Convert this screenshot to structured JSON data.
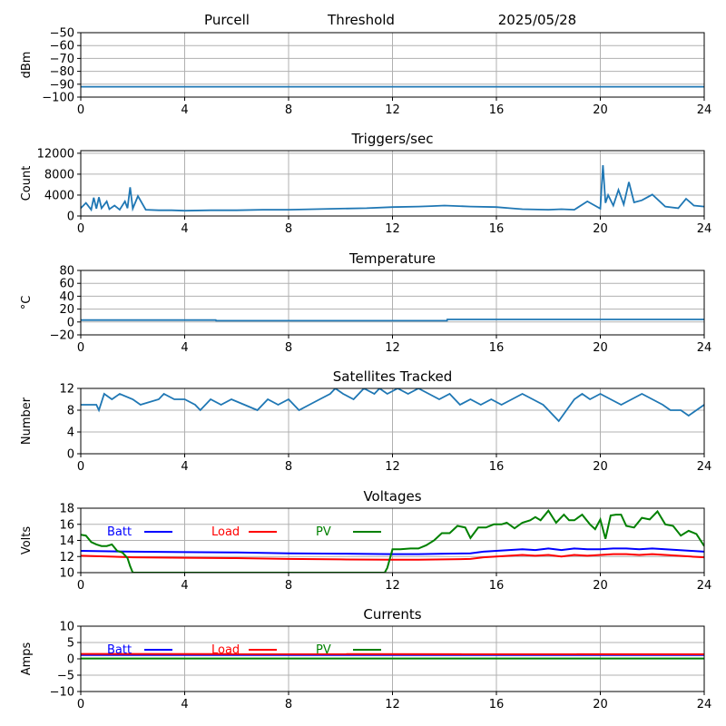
{
  "header": {
    "site": "Purcell",
    "mode": "Threshold",
    "date": "2025/05/28"
  },
  "colors": {
    "series": "#1f77b4",
    "batt": "#0000ff",
    "load": "#ff0000",
    "pv": "#008000",
    "grid": "#b0b0b0"
  },
  "chart_data": [
    {
      "type": "line",
      "title": "",
      "ylabel": "dBm",
      "xlim": [
        0,
        24
      ],
      "xticks": [
        0,
        4,
        8,
        12,
        16,
        20,
        24
      ],
      "ylim": [
        -100,
        -50
      ],
      "yticks": [
        -100,
        -90,
        -80,
        -70,
        -60,
        -50
      ],
      "grid": true,
      "series": [
        {
          "values_x": [
            0,
            2,
            4,
            6,
            8,
            10,
            12,
            14,
            16,
            18,
            20,
            22,
            24
          ],
          "values": [
            -92,
            -92,
            -92,
            -92,
            -92,
            -92,
            -92,
            -92,
            -92,
            -92,
            -92,
            -92,
            -92
          ]
        }
      ]
    },
    {
      "type": "line",
      "title": "Triggers/sec",
      "ylabel": "Count",
      "xlim": [
        0,
        24
      ],
      "xticks": [
        0,
        4,
        8,
        12,
        16,
        20,
        24
      ],
      "ylim": [
        0,
        12500
      ],
      "yticks": [
        0,
        4000,
        8000,
        12000
      ],
      "grid": true,
      "series": [
        {
          "values_x": [
            0,
            0.2,
            0.4,
            0.5,
            0.6,
            0.7,
            0.8,
            1.0,
            1.1,
            1.3,
            1.5,
            1.7,
            1.8,
            1.9,
            2.0,
            2.2,
            2.5,
            3.0,
            3.5,
            4.0,
            5.0,
            6.0,
            7.0,
            8.0,
            9.0,
            10.0,
            11.0,
            12.0,
            13.0,
            13.5,
            14.0,
            15.0,
            16.0,
            16.5,
            17.0,
            18.0,
            18.5,
            19.0,
            19.5,
            20.0,
            20.1,
            20.2,
            20.3,
            20.5,
            20.7,
            20.9,
            21.1,
            21.3,
            21.6,
            22.0,
            22.5,
            23.0,
            23.3,
            23.6,
            24.0
          ],
          "values": [
            1500,
            2500,
            1200,
            3500,
            1400,
            3600,
            1500,
            2800,
            1300,
            2000,
            1200,
            2800,
            1500,
            5500,
            1400,
            3800,
            1200,
            1100,
            1100,
            1000,
            1100,
            1100,
            1200,
            1200,
            1300,
            1400,
            1500,
            1700,
            1800,
            1900,
            2000,
            1800,
            1700,
            1500,
            1300,
            1200,
            1300,
            1200,
            2800,
            1400,
            9700,
            2500,
            4000,
            2000,
            5000,
            2200,
            6500,
            2600,
            3000,
            4100,
            1800,
            1500,
            3300,
            2000,
            1800
          ]
        }
      ]
    },
    {
      "type": "line",
      "title": "Temperature",
      "ylabel": "°C",
      "xlim": [
        0,
        24
      ],
      "xticks": [
        0,
        4,
        8,
        12,
        16,
        20,
        24
      ],
      "ylim": [
        -20,
        80
      ],
      "yticks": [
        -20,
        0,
        20,
        40,
        60,
        80
      ],
      "grid": true,
      "series": [
        {
          "values_x": [
            0,
            5.2,
            5.21,
            14.1,
            14.11,
            24
          ],
          "values": [
            3,
            3,
            2,
            2,
            4,
            4
          ]
        }
      ]
    },
    {
      "type": "line",
      "title": "Satellites Tracked",
      "ylabel": "Number",
      "xlim": [
        0,
        24
      ],
      "xticks": [
        0,
        4,
        8,
        12,
        16,
        20,
        24
      ],
      "ylim": [
        0,
        12
      ],
      "yticks": [
        0,
        4,
        8,
        12
      ],
      "grid": true,
      "series": [
        {
          "values_x": [
            0,
            0.6,
            0.7,
            0.9,
            1.2,
            1.5,
            2.0,
            2.3,
            3.0,
            3.2,
            3.6,
            4.0,
            4.4,
            4.6,
            5.0,
            5.4,
            5.8,
            6.3,
            6.8,
            7.2,
            7.6,
            8.0,
            8.4,
            8.8,
            9.2,
            9.6,
            9.8,
            10.1,
            10.5,
            10.9,
            11.3,
            11.5,
            11.8,
            12.2,
            12.6,
            13.0,
            13.4,
            13.8,
            14.2,
            14.6,
            15.0,
            15.4,
            15.8,
            16.2,
            16.6,
            17.0,
            17.4,
            17.8,
            18.0,
            18.2,
            18.4,
            18.7,
            19.0,
            19.3,
            19.6,
            20.0,
            20.4,
            20.8,
            21.2,
            21.6,
            22.0,
            22.4,
            22.7,
            23.1,
            23.4,
            23.7,
            24.0
          ],
          "values": [
            9,
            9,
            8,
            11,
            10,
            11,
            10,
            9,
            10,
            11,
            10,
            10,
            9,
            8,
            10,
            9,
            10,
            9,
            8,
            10,
            9,
            10,
            8,
            9,
            10,
            11,
            12,
            11,
            10,
            12,
            11,
            12,
            11,
            12,
            11,
            12,
            11,
            10,
            11,
            9,
            10,
            9,
            10,
            9,
            10,
            11,
            10,
            9,
            8,
            7,
            6,
            8,
            10,
            11,
            10,
            11,
            10,
            9,
            10,
            11,
            10,
            9,
            8,
            8,
            7,
            8,
            9
          ]
        }
      ]
    },
    {
      "type": "line",
      "title": "Voltages",
      "ylabel": "Volts",
      "xlim": [
        0,
        24
      ],
      "xticks": [
        0,
        4,
        8,
        12,
        16,
        20,
        24
      ],
      "ylim": [
        10,
        18
      ],
      "yticks": [
        10,
        12,
        14,
        16,
        18
      ],
      "grid": true,
      "legend": "top-left",
      "series": [
        {
          "name": "Batt",
          "values_x": [
            0,
            2,
            4,
            6,
            8,
            10,
            12,
            13,
            14,
            15,
            15.5,
            16,
            16.5,
            17,
            17.5,
            18,
            18.5,
            19,
            19.5,
            20,
            20.5,
            21,
            21.5,
            22,
            22.5,
            23,
            23.5,
            24
          ],
          "values": [
            12.7,
            12.6,
            12.55,
            12.5,
            12.4,
            12.35,
            12.3,
            12.3,
            12.35,
            12.4,
            12.6,
            12.7,
            12.8,
            12.9,
            12.8,
            13.0,
            12.8,
            13.0,
            12.9,
            12.9,
            13.0,
            13.0,
            12.9,
            13.0,
            12.9,
            12.8,
            12.7,
            12.6
          ]
        },
        {
          "name": "Load",
          "values_x": [
            0,
            2,
            4,
            6,
            8,
            10,
            12,
            13,
            14,
            15,
            15.5,
            16,
            16.5,
            17,
            17.5,
            18,
            18.5,
            19,
            19.5,
            20,
            20.5,
            21,
            21.5,
            22,
            22.5,
            23,
            23.5,
            24
          ],
          "values": [
            12.1,
            11.9,
            11.85,
            11.8,
            11.7,
            11.65,
            11.6,
            11.6,
            11.65,
            11.7,
            11.9,
            12.0,
            12.1,
            12.2,
            12.1,
            12.2,
            12.0,
            12.2,
            12.1,
            12.2,
            12.3,
            12.3,
            12.2,
            12.3,
            12.2,
            12.1,
            12.0,
            11.9
          ]
        },
        {
          "name": "PV",
          "values_x": [
            0,
            0.2,
            0.4,
            0.6,
            0.8,
            1.0,
            1.2,
            1.4,
            1.6,
            1.8,
            1.9,
            2.0,
            11.7,
            11.8,
            12.0,
            12.3,
            12.7,
            13.0,
            13.3,
            13.6,
            13.9,
            14.2,
            14.5,
            14.8,
            15.0,
            15.3,
            15.6,
            15.9,
            16.2,
            16.4,
            16.7,
            17.0,
            17.3,
            17.5,
            17.7,
            18.0,
            18.3,
            18.6,
            18.8,
            19.0,
            19.3,
            19.6,
            19.8,
            20.0,
            20.2,
            20.4,
            20.6,
            20.8,
            21.0,
            21.3,
            21.6,
            21.9,
            22.2,
            22.5,
            22.8,
            23.1,
            23.4,
            23.7,
            24.0
          ],
          "values": [
            14.7,
            14.6,
            13.8,
            13.5,
            13.3,
            13.3,
            13.5,
            12.7,
            12.5,
            11.8,
            10.8,
            10,
            10,
            10.6,
            12.9,
            12.9,
            13.0,
            13.0,
            13.4,
            14.0,
            14.9,
            14.9,
            15.8,
            15.6,
            14.3,
            15.6,
            15.6,
            16.0,
            16.0,
            16.2,
            15.5,
            16.2,
            16.5,
            16.9,
            16.5,
            17.7,
            16.2,
            17.2,
            16.5,
            16.5,
            17.2,
            16.0,
            15.4,
            16.6,
            14.2,
            17.1,
            17.2,
            17.2,
            15.8,
            15.6,
            16.8,
            16.6,
            17.6,
            16.0,
            15.8,
            14.6,
            15.2,
            14.8,
            13.3
          ]
        }
      ]
    },
    {
      "type": "line",
      "title": "Currents",
      "ylabel": "Amps",
      "xlim": [
        0,
        24
      ],
      "xticks": [
        0,
        4,
        8,
        12,
        16,
        20,
        24
      ],
      "ylim": [
        -10,
        10
      ],
      "yticks": [
        -10,
        -5,
        0,
        5,
        10
      ],
      "grid": true,
      "legend": "top-left",
      "series": [
        {
          "name": "Batt",
          "values_x": [
            0,
            24
          ],
          "values": [
            1.2,
            1.2
          ]
        },
        {
          "name": "Load",
          "values_x": [
            0,
            24
          ],
          "values": [
            1.5,
            1.4
          ]
        },
        {
          "name": "PV",
          "values_x": [
            0,
            24
          ],
          "values": [
            0.1,
            0.1
          ]
        }
      ]
    }
  ]
}
